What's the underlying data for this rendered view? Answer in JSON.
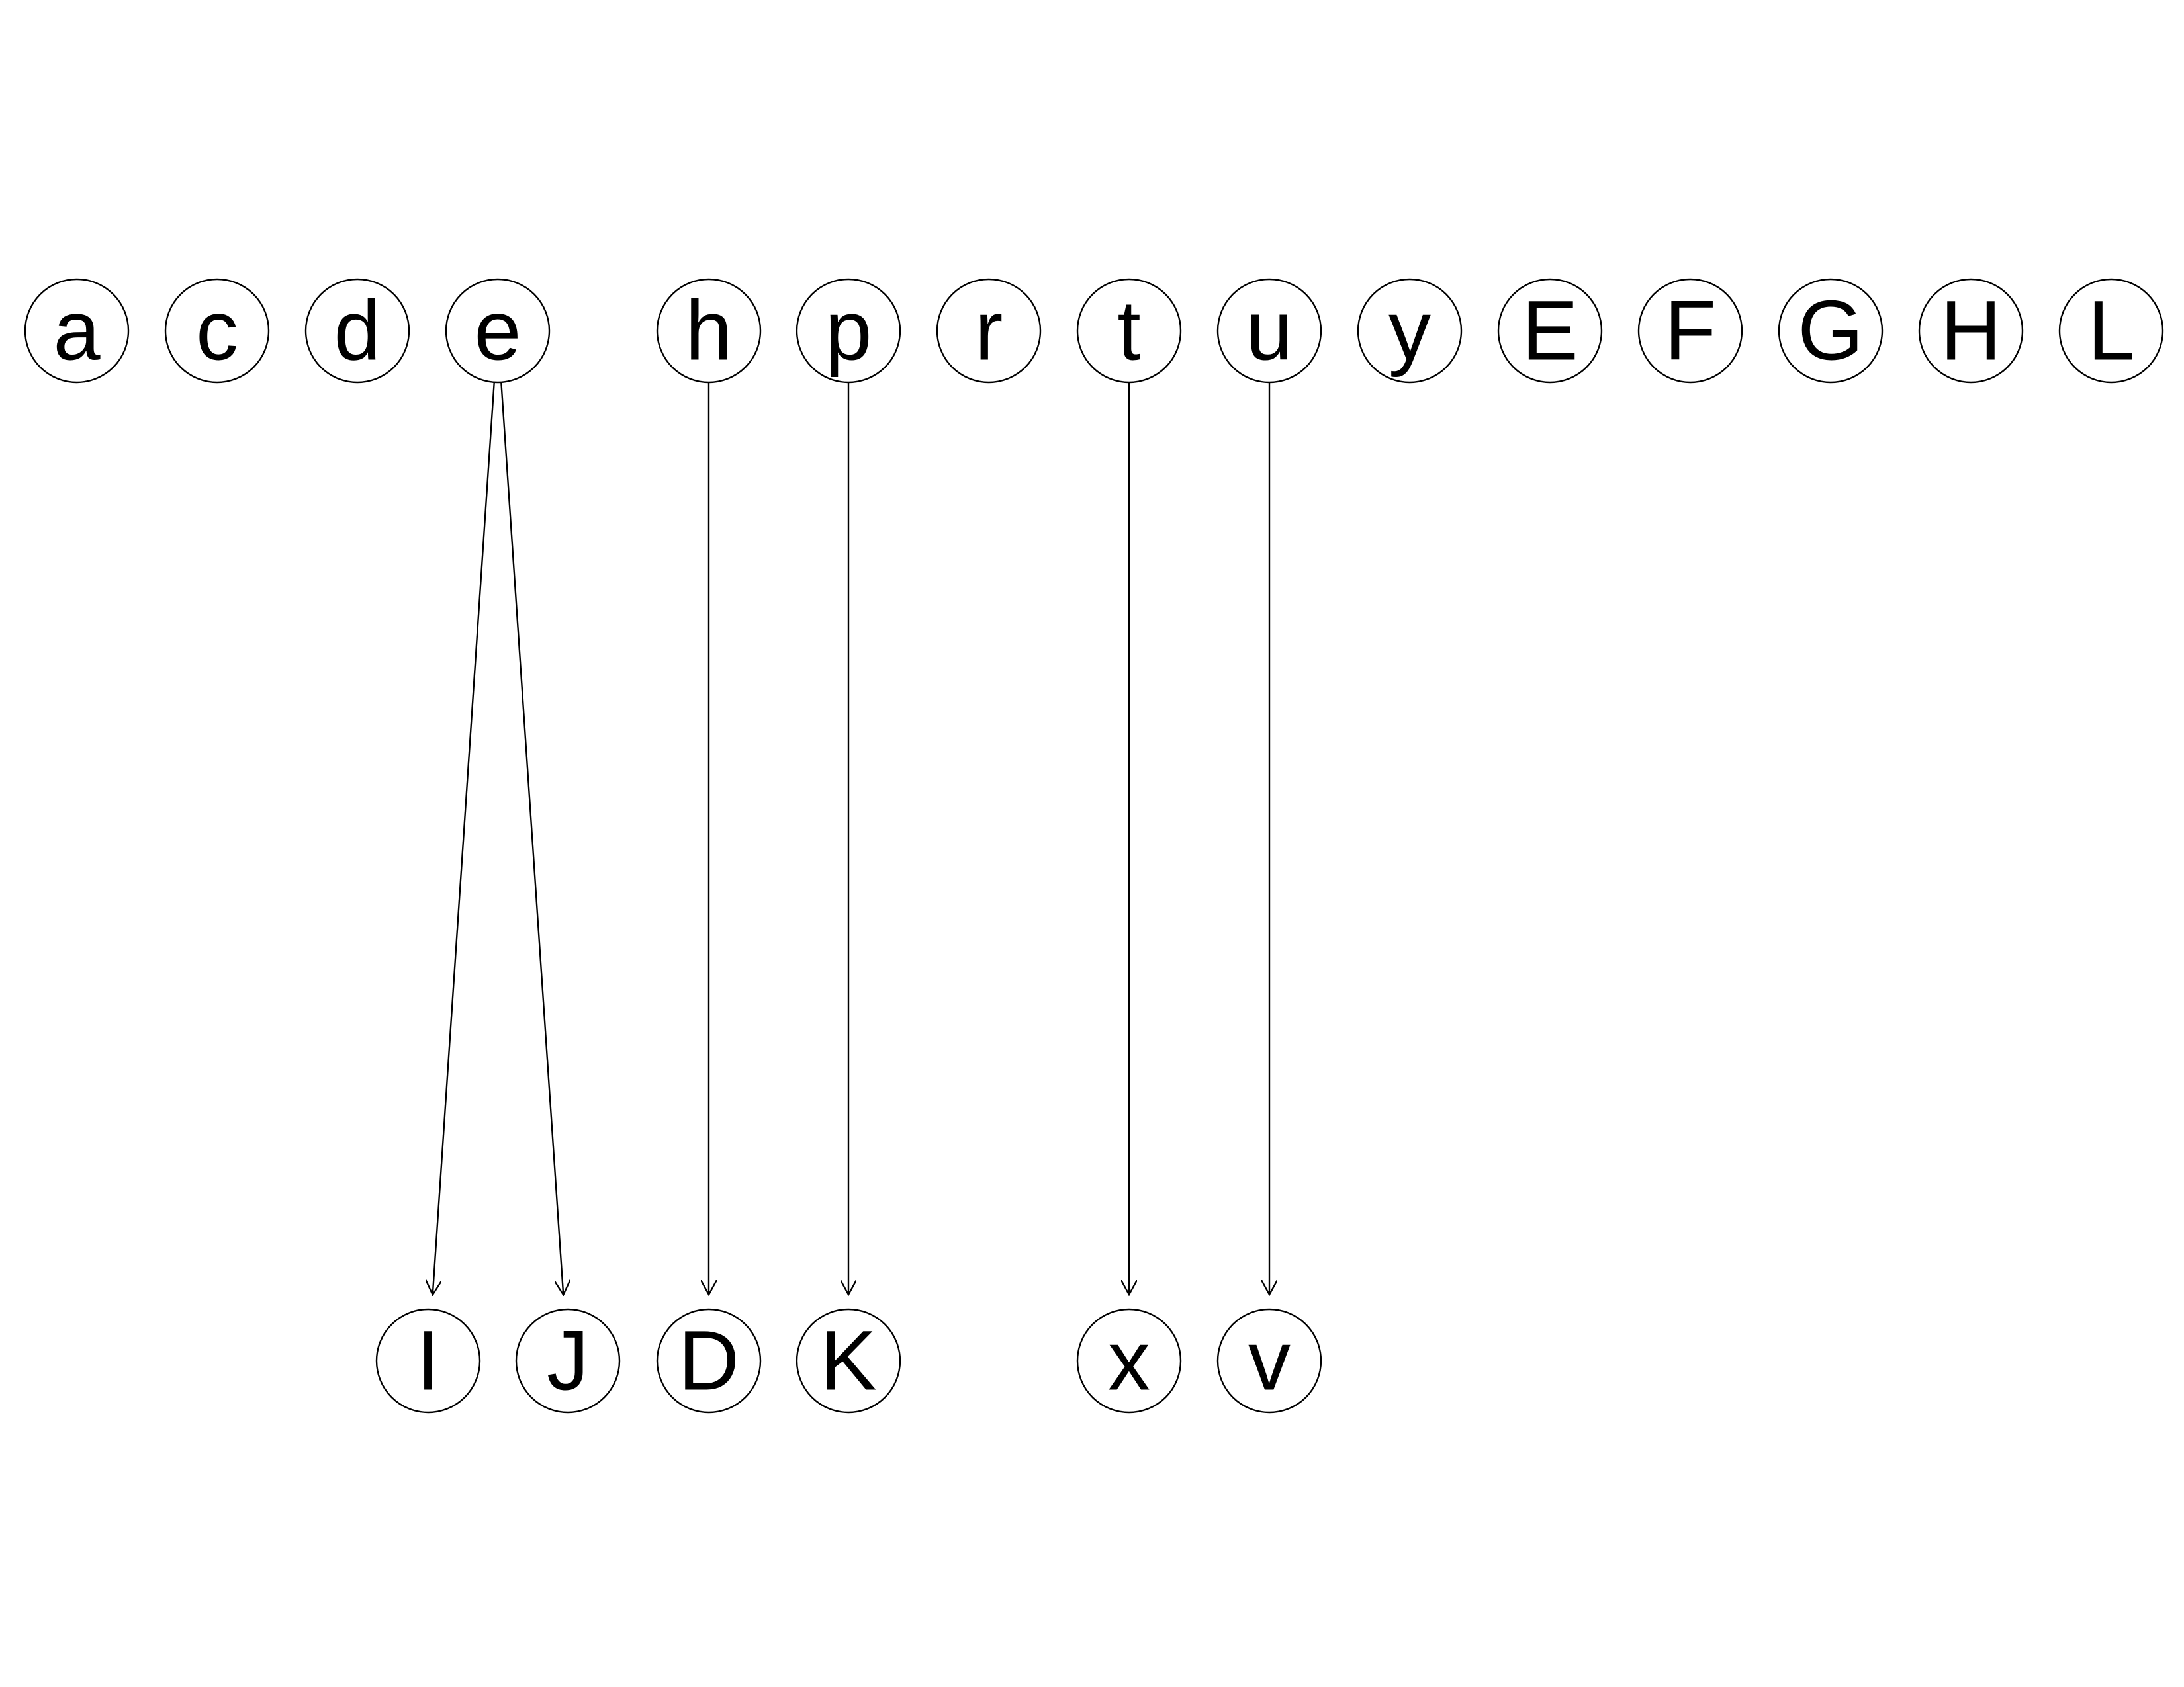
{
  "diagram": {
    "type": "directed-graph",
    "colors": {
      "background": "#ffffff",
      "stroke": "#000000",
      "text": "#000000"
    },
    "nodes": [
      {
        "id": "a",
        "label": "a"
      },
      {
        "id": "c",
        "label": "c"
      },
      {
        "id": "d",
        "label": "d"
      },
      {
        "id": "e",
        "label": "e"
      },
      {
        "id": "h",
        "label": "h"
      },
      {
        "id": "p",
        "label": "p"
      },
      {
        "id": "r",
        "label": "r"
      },
      {
        "id": "t",
        "label": "t"
      },
      {
        "id": "u",
        "label": "u"
      },
      {
        "id": "y",
        "label": "y"
      },
      {
        "id": "E",
        "label": "E"
      },
      {
        "id": "F",
        "label": "F"
      },
      {
        "id": "G",
        "label": "G"
      },
      {
        "id": "H",
        "label": "H"
      },
      {
        "id": "L",
        "label": "L"
      },
      {
        "id": "I",
        "label": "I"
      },
      {
        "id": "J",
        "label": "J"
      },
      {
        "id": "D",
        "label": "D"
      },
      {
        "id": "K",
        "label": "K"
      },
      {
        "id": "x",
        "label": "x"
      },
      {
        "id": "v",
        "label": "v"
      }
    ],
    "edges": [
      {
        "from": "e",
        "to": "I"
      },
      {
        "from": "e",
        "to": "J"
      },
      {
        "from": "h",
        "to": "D"
      },
      {
        "from": "p",
        "to": "K"
      },
      {
        "from": "t",
        "to": "x"
      },
      {
        "from": "u",
        "to": "v"
      }
    ]
  }
}
